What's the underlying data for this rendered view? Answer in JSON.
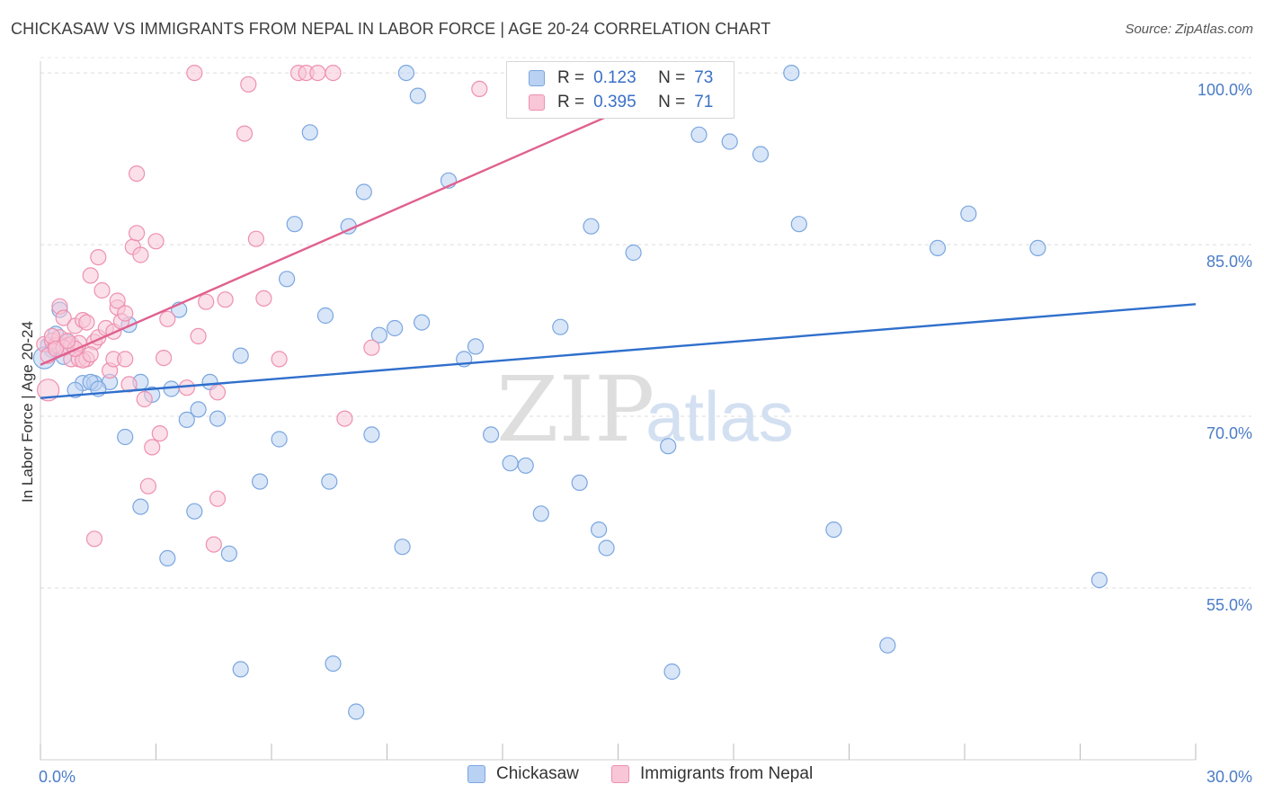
{
  "title": "CHICKASAW VS IMMIGRANTS FROM NEPAL IN LABOR FORCE | AGE 20-24 CORRELATION CHART",
  "source": "Source: ZipAtlas.com",
  "watermark": {
    "zip": "ZIP",
    "atlas": "atlas"
  },
  "legend": {
    "rows": [
      {
        "r_label": "R =",
        "r_value": "0.123",
        "n_label": "N =",
        "n_value": "73"
      },
      {
        "r_label": "R =",
        "r_value": "0.395",
        "n_label": "N =",
        "n_value": "71"
      }
    ]
  },
  "chart_data": {
    "type": "scatter",
    "title": "CHICKASAW VS IMMIGRANTS FROM NEPAL IN LABOR FORCE | AGE 20-24 CORRELATION CHART",
    "xlabel": "",
    "ylabel": "In Labor Force | Age 20-24",
    "xlim": [
      0,
      30
    ],
    "ylim": [
      40,
      101.5
    ],
    "x_tick_labels": [
      "0.0%",
      "30.0%"
    ],
    "y_ticks": [
      55,
      70,
      85,
      100
    ],
    "y_tick_labels": [
      "55.0%",
      "70.0%",
      "85.0%",
      "100.0%"
    ],
    "grid": true,
    "series": [
      {
        "name": "Chickasaw",
        "color": "#7aa6e0",
        "fill": "#b9d1f2",
        "r": 0.123,
        "n": 73,
        "trend": {
          "x": [
            0,
            30
          ],
          "y": [
            71.6,
            79.8
          ],
          "color": "#2f6fcc"
        },
        "points": [
          [
            0.2,
            76.2
          ],
          [
            0.3,
            75.8
          ],
          [
            0.4,
            77.2
          ],
          [
            0.5,
            79.3
          ],
          [
            0.6,
            75.2
          ],
          [
            1.1,
            72.9
          ],
          [
            0.9,
            72.3
          ],
          [
            1.4,
            72.9
          ],
          [
            1.3,
            73.0
          ],
          [
            1.8,
            73.0
          ],
          [
            2.3,
            78.0
          ],
          [
            2.6,
            73.0
          ],
          [
            2.9,
            71.9
          ],
          [
            2.2,
            68.2
          ],
          [
            3.4,
            72.4
          ],
          [
            3.6,
            79.3
          ],
          [
            3.8,
            69.7
          ],
          [
            4.1,
            70.6
          ],
          [
            4.4,
            73.0
          ],
          [
            4.6,
            69.8
          ],
          [
            5.2,
            75.3
          ],
          [
            5.7,
            64.3
          ],
          [
            6.2,
            68.0
          ],
          [
            6.4,
            82.0
          ],
          [
            6.6,
            86.8
          ],
          [
            7.0,
            94.8
          ],
          [
            7.4,
            78.8
          ],
          [
            7.5,
            64.3
          ],
          [
            8.0,
            86.6
          ],
          [
            8.4,
            89.6
          ],
          [
            8.6,
            68.4
          ],
          [
            8.8,
            77.1
          ],
          [
            9.2,
            77.7
          ],
          [
            9.5,
            100.0
          ],
          [
            9.8,
            98.0
          ],
          [
            9.9,
            78.2
          ],
          [
            10.6,
            90.6
          ],
          [
            11.0,
            75.0
          ],
          [
            11.3,
            76.1
          ],
          [
            11.7,
            68.4
          ],
          [
            12.2,
            65.9
          ],
          [
            12.6,
            65.7
          ],
          [
            13.0,
            61.5
          ],
          [
            13.5,
            77.8
          ],
          [
            14.0,
            64.2
          ],
          [
            14.3,
            86.6
          ],
          [
            14.5,
            60.1
          ],
          [
            14.7,
            58.5
          ],
          [
            15.4,
            84.3
          ],
          [
            16.3,
            67.4
          ],
          [
            16.4,
            47.7
          ],
          [
            17.1,
            94.6
          ],
          [
            17.9,
            94.0
          ],
          [
            18.7,
            92.9
          ],
          [
            19.5,
            100.0
          ],
          [
            19.7,
            86.8
          ],
          [
            20.6,
            60.1
          ],
          [
            22.0,
            50.0
          ],
          [
            23.3,
            84.7
          ],
          [
            24.1,
            87.7
          ],
          [
            25.9,
            84.7
          ],
          [
            27.5,
            55.7
          ],
          [
            2.6,
            62.1
          ],
          [
            3.3,
            57.6
          ],
          [
            4.0,
            61.7
          ],
          [
            4.9,
            58.0
          ],
          [
            5.2,
            47.9
          ],
          [
            7.6,
            48.4
          ],
          [
            8.2,
            44.2
          ],
          [
            9.4,
            58.6
          ],
          [
            0.1,
            75.1
          ],
          [
            0.7,
            76.5
          ],
          [
            1.5,
            72.4
          ]
        ]
      },
      {
        "name": "Immigrants from Nepal",
        "color": "#ee90b0",
        "fill": "#f8c6d7",
        "r": 0.395,
        "n": 71,
        "trend": {
          "x": [
            0,
            15.2
          ],
          "y": [
            74.5,
            96.9
          ],
          "color": "#e0608e"
        },
        "points": [
          [
            0.1,
            76.3
          ],
          [
            0.2,
            75.3
          ],
          [
            0.2,
            72.3
          ],
          [
            0.3,
            76.6
          ],
          [
            0.4,
            76.2
          ],
          [
            0.5,
            76.9
          ],
          [
            0.5,
            79.6
          ],
          [
            0.6,
            78.6
          ],
          [
            0.7,
            76.2
          ],
          [
            0.8,
            76.3
          ],
          [
            0.8,
            75.0
          ],
          [
            0.9,
            77.9
          ],
          [
            1.0,
            75.0
          ],
          [
            1.0,
            76.4
          ],
          [
            1.1,
            78.4
          ],
          [
            1.2,
            78.2
          ],
          [
            1.2,
            75.0
          ],
          [
            1.3,
            82.3
          ],
          [
            1.4,
            76.5
          ],
          [
            1.5,
            76.9
          ],
          [
            1.5,
            83.9
          ],
          [
            1.6,
            81.0
          ],
          [
            1.7,
            77.7
          ],
          [
            1.8,
            74.0
          ],
          [
            1.9,
            77.4
          ],
          [
            1.9,
            75.0
          ],
          [
            2.0,
            79.5
          ],
          [
            2.0,
            80.1
          ],
          [
            2.1,
            78.3
          ],
          [
            2.2,
            75.0
          ],
          [
            2.3,
            72.8
          ],
          [
            2.4,
            84.8
          ],
          [
            2.5,
            86.0
          ],
          [
            2.5,
            91.2
          ],
          [
            2.6,
            84.1
          ],
          [
            2.7,
            71.5
          ],
          [
            2.8,
            63.9
          ],
          [
            2.9,
            67.3
          ],
          [
            3.0,
            85.3
          ],
          [
            3.1,
            68.5
          ],
          [
            3.2,
            75.1
          ],
          [
            3.3,
            78.5
          ],
          [
            3.8,
            72.5
          ],
          [
            4.1,
            77.0
          ],
          [
            4.3,
            80.0
          ],
          [
            4.6,
            72.1
          ],
          [
            4.6,
            62.8
          ],
          [
            4.8,
            80.2
          ],
          [
            5.3,
            94.7
          ],
          [
            5.4,
            99.0
          ],
          [
            5.6,
            85.5
          ],
          [
            5.8,
            80.3
          ],
          [
            6.2,
            75.0
          ],
          [
            6.7,
            100.0
          ],
          [
            6.9,
            100.0
          ],
          [
            7.2,
            100.0
          ],
          [
            7.6,
            100.0
          ],
          [
            7.9,
            69.8
          ],
          [
            8.6,
            76.0
          ],
          [
            11.4,
            98.6
          ],
          [
            1.4,
            59.3
          ],
          [
            4.5,
            58.8
          ],
          [
            4.0,
            100.0
          ],
          [
            0.3,
            77.0
          ],
          [
            0.6,
            76.0
          ],
          [
            1.1,
            74.9
          ],
          [
            0.4,
            75.9
          ],
          [
            0.9,
            75.9
          ],
          [
            2.2,
            79.0
          ],
          [
            1.3,
            75.4
          ],
          [
            0.7,
            76.6
          ]
        ]
      }
    ]
  }
}
